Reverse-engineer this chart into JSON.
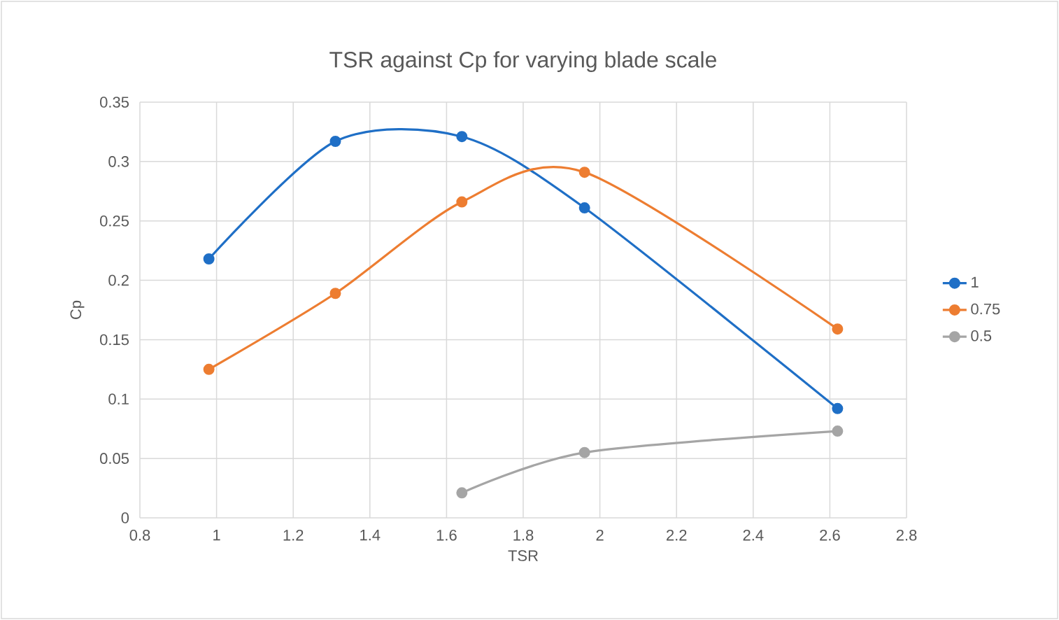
{
  "chart_data": {
    "type": "line",
    "title": "TSR against Cp for varying blade scale",
    "xlabel": "TSR",
    "ylabel": "Cp",
    "series": [
      {
        "name": "1",
        "color": "#1f6fc6",
        "x": [
          0.98,
          1.31,
          1.64,
          1.96,
          2.62
        ],
        "values": [
          0.218,
          0.317,
          0.321,
          0.261,
          0.092
        ]
      },
      {
        "name": "0.75",
        "color": "#ed7d31",
        "x": [
          0.98,
          1.31,
          1.64,
          1.96,
          2.62
        ],
        "values": [
          0.125,
          0.189,
          0.266,
          0.291,
          0.159
        ]
      },
      {
        "name": "0.5",
        "color": "#a5a5a5",
        "x": [
          1.64,
          1.96,
          2.62
        ],
        "values": [
          0.021,
          0.055,
          0.073
        ]
      }
    ],
    "xlim": [
      0.8,
      2.8
    ],
    "xticks": [
      0.8,
      1,
      1.2,
      1.4,
      1.6,
      1.8,
      2,
      2.2,
      2.4,
      2.6,
      2.8
    ],
    "ylim": [
      0,
      0.35
    ],
    "yticks": [
      0,
      0.05,
      0.1,
      0.15,
      0.2,
      0.25,
      0.3,
      0.35
    ],
    "grid": true,
    "legend": "right",
    "marker": "circle",
    "line_style": "solid"
  }
}
